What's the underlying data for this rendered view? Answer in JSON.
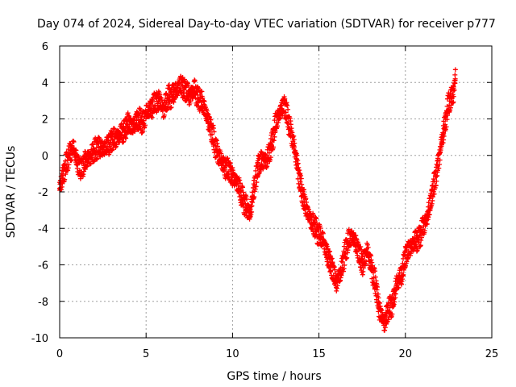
{
  "chart_data": {
    "type": "scatter",
    "title": "Day 074 of 2024, Sidereal Day-to-day VTEC variation (SDTVAR) for receiver p777",
    "xlabel": "GPS time / hours",
    "ylabel": "SDTVAR / TECUs",
    "xlim": [
      0,
      25
    ],
    "ylim": [
      -10,
      6
    ],
    "xticks": [
      "0",
      "5",
      "10",
      "15",
      "20",
      "25"
    ],
    "yticks": [
      "-10",
      "-8",
      "-6",
      "-4",
      "-2",
      "0",
      "2",
      "4",
      "6"
    ],
    "grid": true,
    "marker": "+",
    "color": "#ff0000",
    "series": [
      {
        "name": "",
        "x": [
          0.0,
          0.2,
          0.4,
          0.6,
          0.8,
          1.0,
          1.2,
          1.5,
          1.8,
          2.0,
          2.2,
          2.5,
          2.8,
          3.0,
          3.3,
          3.6,
          3.8,
          4.0,
          4.2,
          4.5,
          4.8,
          5.0,
          5.3,
          5.5,
          5.8,
          6.0,
          6.3,
          6.5,
          6.8,
          7.0,
          7.3,
          7.5,
          7.8,
          8.0,
          8.3,
          8.5,
          8.8,
          9.0,
          9.3,
          9.5,
          9.8,
          10.0,
          10.3,
          10.5,
          10.8,
          11.0,
          11.3,
          11.5,
          11.8,
          12.0,
          12.3,
          12.5,
          12.8,
          13.0,
          13.2,
          13.5,
          13.8,
          14.0,
          14.3,
          14.5,
          14.8,
          15.0,
          15.3,
          15.5,
          15.8,
          16.0,
          16.3,
          16.5,
          16.8,
          17.0,
          17.3,
          17.5,
          17.8,
          18.0,
          18.3,
          18.5,
          18.8,
          19.0,
          19.3,
          19.5,
          19.8,
          20.0,
          20.3,
          20.5,
          20.8,
          21.0,
          21.3,
          21.5,
          21.8,
          22.0,
          22.3,
          22.5,
          22.8,
          22.9
        ],
        "y": [
          -1.8,
          -1.0,
          -0.5,
          0.2,
          0.4,
          -0.3,
          -0.8,
          -0.3,
          0.0,
          0.2,
          0.5,
          0.3,
          0.6,
          0.8,
          1.0,
          1.2,
          1.5,
          1.8,
          1.5,
          2.0,
          1.8,
          2.3,
          2.6,
          2.9,
          3.0,
          2.5,
          3.2,
          3.3,
          3.6,
          3.9,
          3.5,
          3.3,
          3.6,
          3.2,
          2.8,
          2.2,
          1.3,
          0.5,
          -0.2,
          -0.6,
          -0.8,
          -1.2,
          -1.5,
          -2.2,
          -2.8,
          -3.3,
          -1.5,
          -0.5,
          -0.2,
          -0.3,
          0.8,
          1.8,
          2.5,
          2.8,
          2.0,
          0.8,
          -0.8,
          -2.0,
          -3.0,
          -3.5,
          -4.0,
          -4.3,
          -4.8,
          -5.5,
          -6.3,
          -7.0,
          -6.3,
          -5.3,
          -4.5,
          -4.5,
          -5.3,
          -6.0,
          -5.2,
          -6.0,
          -7.2,
          -8.5,
          -9.2,
          -8.5,
          -8.0,
          -7.0,
          -6.5,
          -5.5,
          -5.0,
          -4.8,
          -4.5,
          -4.0,
          -3.3,
          -2.3,
          -1.0,
          0.2,
          1.8,
          2.8,
          3.5,
          4.5
        ]
      }
    ]
  }
}
